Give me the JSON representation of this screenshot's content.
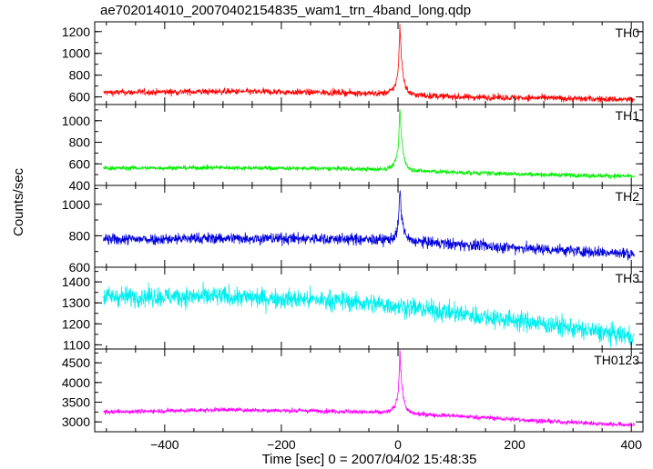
{
  "title": "ae702014010_20070402154835_wam1_trn_4band_long.qdp",
  "ylabel": "Counts/sec",
  "xlabel": "Time [sec] 0 = 2007/04/02 15:48:35",
  "chart_data": [
    {
      "type": "line",
      "name": "TH0",
      "color": "#ff0000",
      "xlim": [
        -520,
        420
      ],
      "ylim": [
        530,
        1290
      ],
      "yticks": [
        600,
        800,
        1000,
        1200
      ],
      "baseline": [
        [
          -505,
          640
        ],
        [
          -300,
          650
        ],
        [
          -100,
          640
        ],
        [
          0,
          625
        ],
        [
          100,
          600
        ],
        [
          250,
          590
        ],
        [
          400,
          575
        ]
      ],
      "noise": 28,
      "peak": {
        "x": 3,
        "y": 1260
      },
      "shoulder": {
        "x": -2,
        "y": 930
      }
    },
    {
      "type": "line",
      "name": "TH1",
      "color": "#00ee00",
      "xlim": [
        -520,
        420
      ],
      "ylim": [
        400,
        1150
      ],
      "yticks": [
        400,
        600,
        800,
        1000
      ],
      "baseline": [
        [
          -505,
          560
        ],
        [
          -300,
          565
        ],
        [
          -100,
          555
        ],
        [
          0,
          545
        ],
        [
          100,
          520
        ],
        [
          250,
          500
        ],
        [
          400,
          485
        ]
      ],
      "noise": 20,
      "peak": {
        "x": 3,
        "y": 1140
      },
      "shoulder": {
        "x": -2,
        "y": 820
      }
    },
    {
      "type": "line",
      "name": "TH2",
      "color": "#0000dd",
      "xlim": [
        -520,
        420
      ],
      "ylim": [
        600,
        1120
      ],
      "yticks": [
        600,
        800,
        1000
      ],
      "baseline": [
        [
          -505,
          775
        ],
        [
          -300,
          785
        ],
        [
          -100,
          780
        ],
        [
          0,
          770
        ],
        [
          100,
          745
        ],
        [
          250,
          715
        ],
        [
          400,
          685
        ]
      ],
      "noise": 35,
      "peak": {
        "x": 3,
        "y": 1110
      },
      "shoulder": {
        "x": -2,
        "y": 880
      }
    },
    {
      "type": "line",
      "name": "TH3",
      "color": "#00eeee",
      "xlim": [
        -520,
        420
      ],
      "ylim": [
        1080,
        1470
      ],
      "yticks": [
        1100,
        1200,
        1300,
        1400
      ],
      "baseline": [
        [
          -505,
          1330
        ],
        [
          -300,
          1330
        ],
        [
          -100,
          1310
        ],
        [
          0,
          1285
        ],
        [
          100,
          1250
        ],
        [
          250,
          1200
        ],
        [
          330,
          1165
        ],
        [
          400,
          1140
        ]
      ],
      "noise": 45,
      "peak": null,
      "shoulder": null
    },
    {
      "type": "line",
      "name": "TH0123",
      "color": "#ff00ff",
      "xlim": [
        -520,
        420
      ],
      "ylim": [
        2750,
        4850
      ],
      "yticks": [
        3000,
        3500,
        4000,
        4500
      ],
      "baseline": [
        [
          -505,
          3250
        ],
        [
          -300,
          3310
        ],
        [
          -100,
          3270
        ],
        [
          0,
          3220
        ],
        [
          100,
          3150
        ],
        [
          250,
          3020
        ],
        [
          400,
          2920
        ]
      ],
      "noise": 55,
      "peak": {
        "x": 3,
        "y": 4830
      },
      "shoulder": {
        "x": -2,
        "y": 3950
      }
    }
  ],
  "xaxis": {
    "xlim": [
      -520,
      420
    ],
    "xticks": [
      -400,
      -200,
      0,
      200,
      400
    ]
  }
}
